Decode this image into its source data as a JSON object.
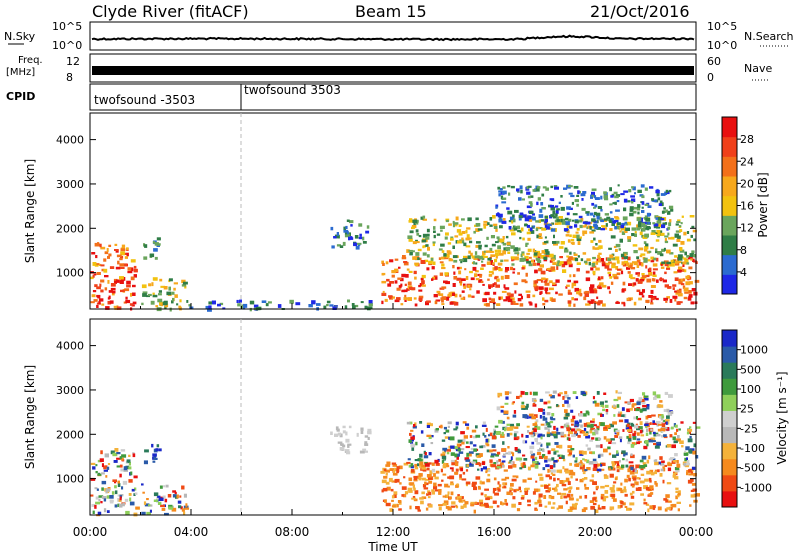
{
  "header": {
    "title": "Clyde River (fitACF)",
    "beam": "Beam 15",
    "date": "21/Oct/2016"
  },
  "strips": {
    "noise": {
      "left_label": "N.Sky",
      "right_label": "N.Search",
      "top_tick": "10^5",
      "bottom_tick": "10^0"
    },
    "freq": {
      "left_label_1": "Freq.",
      "left_label_2": "[MHz]",
      "right_label": "Nave",
      "left_ticks": [
        "12",
        "8"
      ],
      "right_ticks": [
        "60",
        "0"
      ]
    },
    "cpid": {
      "label": "CPID",
      "programs": [
        "twofsound -3503",
        "twofsound 3503"
      ]
    }
  },
  "colors": {
    "power_scale": [
      "#1e28e6",
      "#2b6bd0",
      "#2f7d46",
      "#6aa55c",
      "#f2c20f",
      "#f7a81c",
      "#f3701a",
      "#f0401a",
      "#e81010"
    ],
    "velocity_scale": [
      "#e81010",
      "#f04a14",
      "#f58a1e",
      "#f4b23a",
      "#b8b8b8",
      "#cfcfcf",
      "#8fcf5a",
      "#3f9a3c",
      "#2a7a5a",
      "#2a5aa8",
      "#1a28c8"
    ]
  },
  "chart_data": [
    {
      "type": "heatmap",
      "title": "Power",
      "ylabel": "Slant Range [km]",
      "xlabel": "",
      "x_ticks": [
        "00:00",
        "04:00",
        "08:00",
        "12:00",
        "16:00",
        "20:00",
        "00:00"
      ],
      "y_ticks": [
        1000,
        2000,
        3000,
        4000
      ],
      "ylim": [
        180,
        4600
      ],
      "xlim_hours": [
        0,
        24
      ],
      "colorbar": {
        "label": "Power [dB]",
        "ticks": [
          4,
          8,
          12,
          16,
          20,
          24,
          28
        ]
      },
      "echo_regions": [
        {
          "t0": 0.0,
          "t1": 1.8,
          "r0": 200,
          "r1": 1700,
          "level": "strong"
        },
        {
          "t0": 2.0,
          "t1": 3.8,
          "r0": 200,
          "r1": 900,
          "level": "moderate"
        },
        {
          "t0": 2.1,
          "t1": 2.7,
          "r0": 1300,
          "r1": 1800,
          "level": "weak"
        },
        {
          "t0": 3.8,
          "t1": 11.5,
          "r0": 200,
          "r1": 400,
          "level": "weak"
        },
        {
          "t0": 9.5,
          "t1": 11.0,
          "r0": 1600,
          "r1": 2200,
          "level": "weak"
        },
        {
          "t0": 11.5,
          "t1": 24.0,
          "r0": 300,
          "r1": 1400,
          "level": "strong"
        },
        {
          "t0": 12.5,
          "t1": 24.0,
          "r0": 1200,
          "r1": 2300,
          "level": "moderate"
        },
        {
          "t0": 16.0,
          "t1": 23.0,
          "r0": 2000,
          "r1": 3000,
          "level": "weak"
        }
      ]
    },
    {
      "type": "heatmap",
      "title": "Velocity",
      "ylabel": "Slant Range [km]",
      "xlabel": "Time UT",
      "x_ticks": [
        "00:00",
        "04:00",
        "08:00",
        "12:00",
        "16:00",
        "20:00",
        "00:00"
      ],
      "y_ticks": [
        1000,
        2000,
        3000,
        4000
      ],
      "ylim": [
        180,
        4600
      ],
      "xlim_hours": [
        0,
        24
      ],
      "colorbar": {
        "label": "Velocity [m s⁻¹]",
        "ticks": [
          "1000",
          "500",
          "100",
          "25",
          "-25",
          "-100",
          "-500",
          "-1000"
        ]
      },
      "echo_regions": [
        {
          "t0": 0.0,
          "t1": 1.8,
          "r0": 200,
          "r1": 1700,
          "level": "mixed"
        },
        {
          "t0": 2.0,
          "t1": 3.8,
          "r0": 200,
          "r1": 900,
          "level": "mixed"
        },
        {
          "t0": 2.1,
          "t1": 2.7,
          "r0": 1300,
          "r1": 1800,
          "level": "positive"
        },
        {
          "t0": 9.5,
          "t1": 11.0,
          "r0": 1600,
          "r1": 2200,
          "level": "near-zero"
        },
        {
          "t0": 11.5,
          "t1": 24.0,
          "r0": 300,
          "r1": 1400,
          "level": "negative"
        },
        {
          "t0": 12.5,
          "t1": 24.0,
          "r0": 1200,
          "r1": 2300,
          "level": "mixed"
        },
        {
          "t0": 16.0,
          "t1": 23.0,
          "r0": 2000,
          "r1": 3000,
          "level": "mixed"
        }
      ]
    }
  ]
}
